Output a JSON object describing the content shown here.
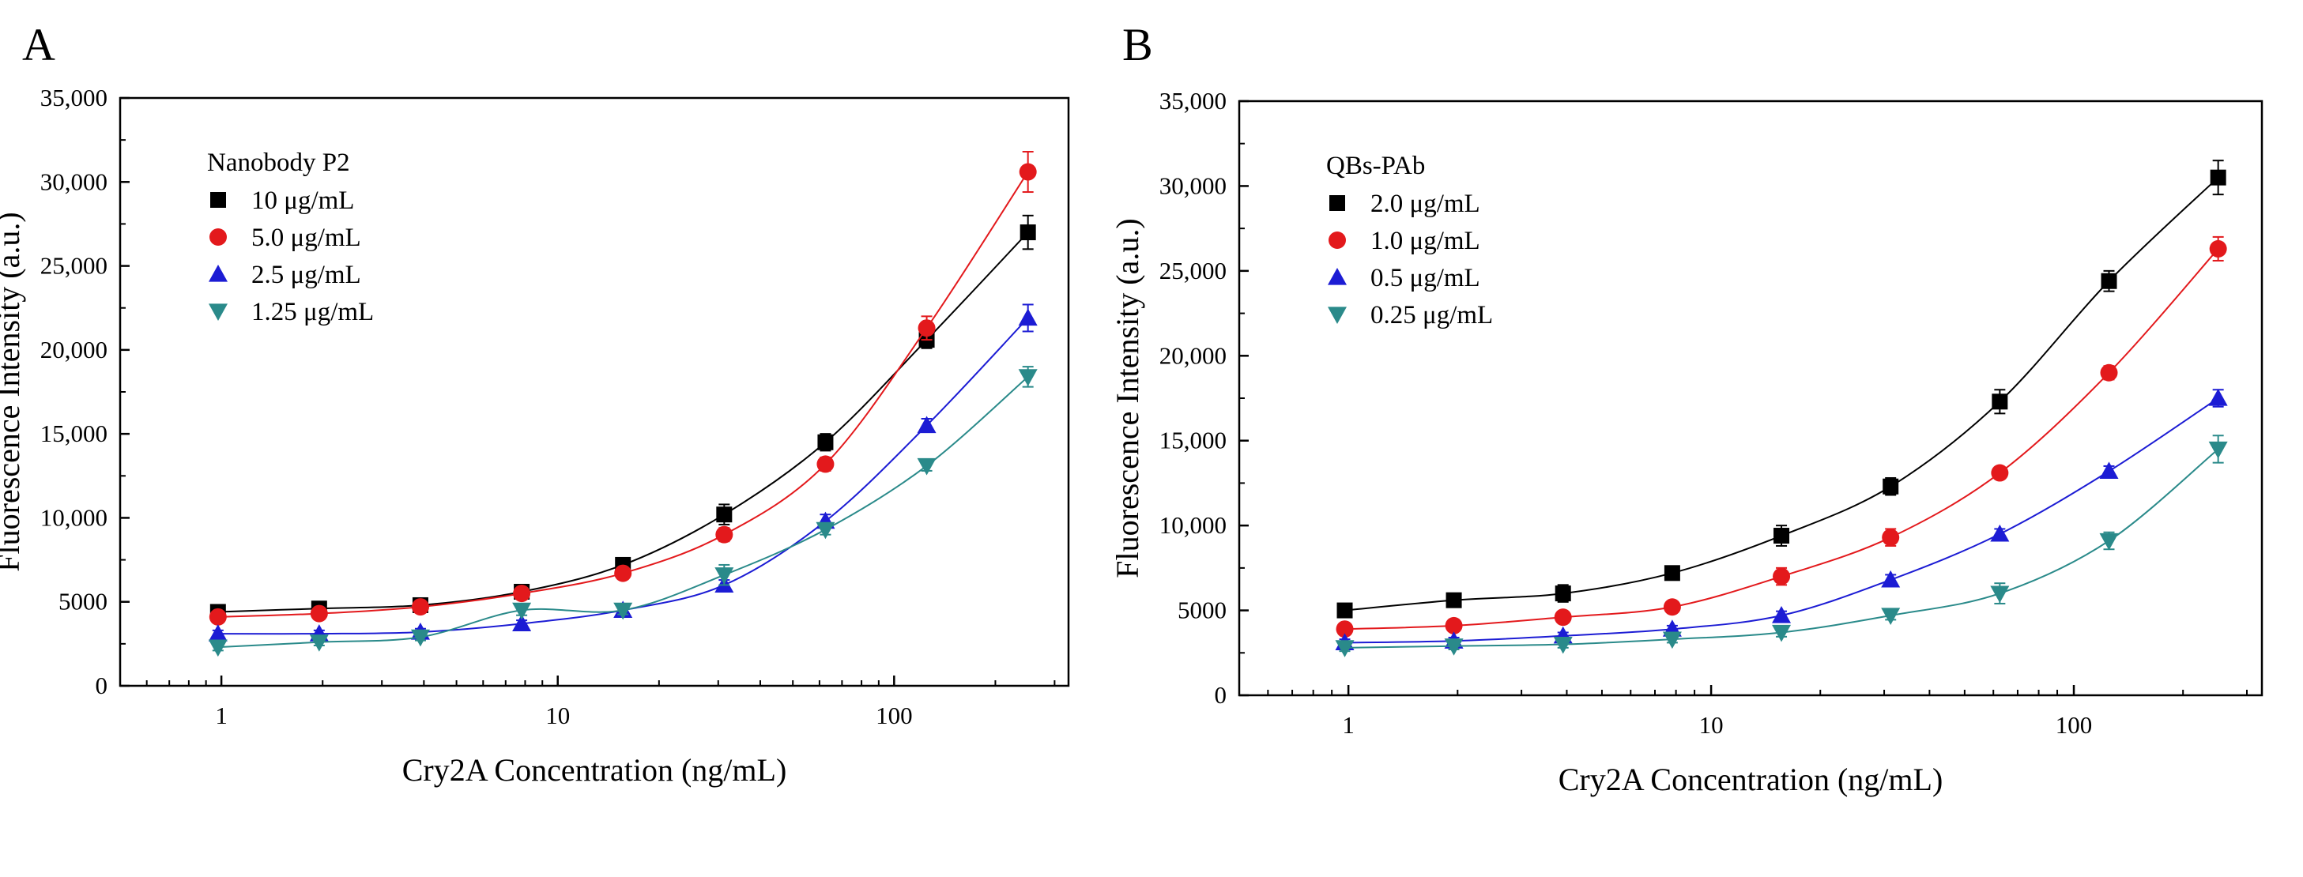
{
  "chart_data": [
    {
      "panel": "A",
      "type": "scatter",
      "xlabel": "Cry2A Concentration (ng/mL)",
      "ylabel": "Fluorescence Intensity (a.u.)",
      "xscale": "log",
      "xlim": [
        0.5,
        330
      ],
      "ylim": [
        0,
        35000
      ],
      "x_ticks": [
        1,
        10,
        100
      ],
      "x_tick_labels": [
        "1",
        "10",
        "100"
      ],
      "y_ticks": [
        0,
        5000,
        10000,
        15000,
        20000,
        25000,
        30000,
        35000
      ],
      "y_tick_labels": [
        "0",
        "5000",
        "10,000",
        "15,000",
        "20,000",
        "25,000",
        "30,000",
        "35,000"
      ],
      "legend_title": "Nanobody P2",
      "legend_position": "top-left",
      "x": [
        0.977,
        1.953,
        3.906,
        7.813,
        15.625,
        31.25,
        62.5,
        125,
        250
      ],
      "series": [
        {
          "name": "10 μg/mL",
          "marker": "square",
          "color": "#000000",
          "values": [
            4400,
            4600,
            4800,
            5600,
            7200,
            10200,
            14500,
            20600,
            27000
          ],
          "errors": [
            300,
            250,
            250,
            300,
            350,
            600,
            500,
            500,
            1000
          ]
        },
        {
          "name": "5.0 μg/mL",
          "marker": "circle",
          "color": "#e3191c",
          "values": [
            4100,
            4300,
            4700,
            5500,
            6700,
            9000,
            13200,
            21300,
            30600
          ],
          "errors": [
            250,
            250,
            250,
            300,
            300,
            400,
            400,
            700,
            1200
          ]
        },
        {
          "name": "2.5 μg/mL",
          "marker": "triangle-up",
          "color": "#1c1cd4",
          "values": [
            3100,
            3100,
            3200,
            3700,
            4500,
            6000,
            9800,
            15500,
            21900
          ],
          "errors": [
            200,
            200,
            200,
            200,
            250,
            300,
            400,
            400,
            800
          ]
        },
        {
          "name": "1.25 μg/mL",
          "marker": "triangle-down",
          "color": "#2a8a8a",
          "values": [
            2300,
            2600,
            2900,
            4500,
            4500,
            6600,
            9300,
            13100,
            18400
          ],
          "errors": [
            200,
            200,
            200,
            300,
            250,
            600,
            300,
            300,
            600
          ]
        }
      ]
    },
    {
      "panel": "B",
      "type": "scatter",
      "xlabel": "Cry2A Concentration (ng/mL)",
      "ylabel": "Fluorescence Intensity (a.u.)",
      "xscale": "log",
      "xlim": [
        0.5,
        330
      ],
      "ylim": [
        0,
        35000
      ],
      "x_ticks": [
        1,
        10,
        100
      ],
      "x_tick_labels": [
        "1",
        "10",
        "100"
      ],
      "y_ticks": [
        0,
        5000,
        10000,
        15000,
        20000,
        25000,
        30000,
        35000
      ],
      "y_tick_labels": [
        "0",
        "5000",
        "10,000",
        "15,000",
        "20,000",
        "25,000",
        "30,000",
        "35,000"
      ],
      "legend_title": "QBs-PAb",
      "legend_position": "top-left",
      "x": [
        0.977,
        1.953,
        3.906,
        7.813,
        15.625,
        31.25,
        62.5,
        125,
        250
      ],
      "series": [
        {
          "name": "2.0 μg/mL",
          "marker": "square",
          "color": "#000000",
          "values": [
            5000,
            5600,
            6000,
            7200,
            9400,
            12300,
            17300,
            24400,
            30500
          ],
          "errors": [
            250,
            300,
            500,
            250,
            600,
            500,
            700,
            600,
            1000
          ]
        },
        {
          "name": "1.0 μg/mL",
          "marker": "circle",
          "color": "#e3191c",
          "values": [
            3900,
            4100,
            4600,
            5200,
            7000,
            9300,
            13100,
            19000,
            26300
          ],
          "errors": [
            250,
            250,
            250,
            250,
            500,
            500,
            300,
            400,
            700
          ]
        },
        {
          "name": "0.5 μg/mL",
          "marker": "triangle-up",
          "color": "#1c1cd4",
          "values": [
            3100,
            3200,
            3500,
            3900,
            4700,
            6800,
            9500,
            13200,
            17500
          ],
          "errors": [
            200,
            200,
            200,
            200,
            250,
            300,
            300,
            300,
            500
          ]
        },
        {
          "name": "0.25 μg/mL",
          "marker": "triangle-down",
          "color": "#2a8a8a",
          "values": [
            2800,
            2900,
            3000,
            3300,
            3700,
            4700,
            6000,
            9100,
            14500
          ],
          "errors": [
            200,
            200,
            200,
            200,
            250,
            250,
            600,
            500,
            800
          ]
        }
      ]
    }
  ]
}
